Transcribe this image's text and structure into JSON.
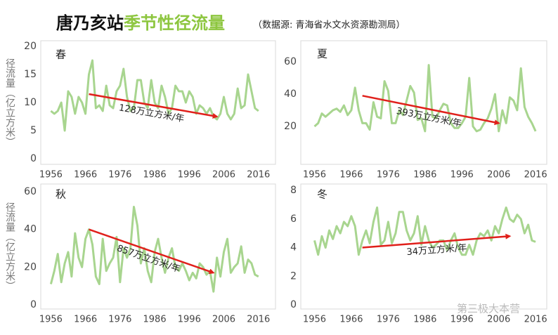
{
  "header": {
    "title": "唐乃亥站",
    "title_highlight": "季节性径流量",
    "source": "（数据源: 青海省水文水资源勘测局）"
  },
  "watermark": "第三极大本营",
  "chart_data": [
    {
      "type": "line",
      "title": "春",
      "ylabel": "径流量（亿立方米）",
      "color": "#a8d58f",
      "x": [
        1956,
        1957,
        1958,
        1959,
        1960,
        1961,
        1962,
        1963,
        1964,
        1965,
        1966,
        1967,
        1968,
        1969,
        1970,
        1971,
        1972,
        1973,
        1974,
        1975,
        1976,
        1977,
        1978,
        1979,
        1980,
        1981,
        1982,
        1983,
        1984,
        1985,
        1986,
        1987,
        1988,
        1989,
        1990,
        1991,
        1992,
        1993,
        1994,
        1995,
        1996,
        1997,
        1998,
        1999,
        2000,
        2001,
        2002,
        2003,
        2004,
        2005,
        2006,
        2007,
        2008,
        2009,
        2010,
        2011,
        2012,
        2013,
        2014,
        2015,
        2016
      ],
      "values": [
        8.5,
        8,
        8.5,
        10,
        5,
        12,
        11,
        8,
        11,
        10,
        8,
        15,
        17.5,
        9,
        9.5,
        8.5,
        13,
        9.5,
        9,
        12,
        13,
        16,
        11,
        8.5,
        9,
        14,
        14,
        10,
        9,
        14,
        10,
        9,
        13,
        11,
        8,
        9,
        13,
        12,
        12,
        10,
        12,
        11,
        8,
        9.5,
        9,
        8,
        9,
        7.5,
        7,
        8,
        11,
        8,
        7,
        8,
        12.5,
        9,
        9.5,
        15,
        12,
        9,
        8.5
      ],
      "xlim": [
        1954.5,
        2019.5
      ],
      "xticks": [
        1956,
        1966,
        1976,
        1986,
        1996,
        2006,
        2016
      ],
      "ylim": [
        0,
        20
      ],
      "yticks": [
        0,
        5,
        10,
        15,
        20
      ],
      "trend": {
        "label": "128万立方米/年",
        "color": "#e0201b",
        "x": [
          1967,
          2004
        ],
        "y": [
          11.5,
          7.5
        ]
      }
    },
    {
      "type": "line",
      "title": "夏",
      "color": "#a8d58f",
      "x": [
        1956,
        1957,
        1958,
        1959,
        1960,
        1961,
        1962,
        1963,
        1964,
        1965,
        1966,
        1967,
        1968,
        1969,
        1970,
        1971,
        1972,
        1973,
        1974,
        1975,
        1976,
        1977,
        1978,
        1979,
        1980,
        1981,
        1982,
        1983,
        1984,
        1985,
        1986,
        1987,
        1988,
        1989,
        1990,
        1991,
        1992,
        1993,
        1994,
        1995,
        1996,
        1997,
        1998,
        1999,
        2000,
        2001,
        2002,
        2003,
        2004,
        2005,
        2006,
        2007,
        2008,
        2009,
        2010,
        2011,
        2012,
        2013,
        2014,
        2015,
        2016
      ],
      "values": [
        20,
        22,
        28,
        26,
        28,
        30,
        31,
        29,
        33,
        27,
        30,
        44,
        30,
        22,
        22,
        18,
        35,
        26,
        25,
        48,
        42,
        22,
        22,
        30,
        27,
        36,
        45,
        41,
        24,
        25,
        17,
        58,
        26,
        25,
        30,
        34,
        33,
        22,
        19,
        19,
        22,
        26,
        50,
        20,
        17,
        18,
        22,
        25,
        31,
        40,
        17,
        30,
        22,
        38,
        36,
        30,
        56,
        32,
        26,
        22,
        17
      ],
      "xlim": [
        1954,
        2017.5
      ],
      "xticks": [
        1956,
        1966,
        1976,
        1986,
        1996,
        2006,
        2016
      ],
      "ylim": [
        0,
        70
      ],
      "yticks": [
        20,
        40,
        60
      ],
      "trend": {
        "label": "393万立方米/年",
        "color": "#e0201b",
        "x": [
          1969,
          2006
        ],
        "y": [
          39,
          22
        ]
      }
    },
    {
      "type": "line",
      "title": "秋",
      "ylabel": "径流量（亿立方米）",
      "color": "#a8d58f",
      "x": [
        1956,
        1957,
        1958,
        1959,
        1960,
        1961,
        1962,
        1963,
        1964,
        1965,
        1966,
        1967,
        1968,
        1969,
        1970,
        1971,
        1972,
        1973,
        1974,
        1975,
        1976,
        1977,
        1978,
        1979,
        1980,
        1981,
        1982,
        1983,
        1984,
        1985,
        1986,
        1987,
        1988,
        1989,
        1990,
        1991,
        1992,
        1993,
        1994,
        1995,
        1996,
        1997,
        1998,
        1999,
        2000,
        2001,
        2002,
        2003,
        2004,
        2005,
        2006,
        2007,
        2008,
        2009,
        2010,
        2011,
        2012,
        2013,
        2014,
        2015,
        2016
      ],
      "values": [
        11,
        18,
        27,
        12,
        22,
        28,
        15,
        38,
        25,
        20,
        35,
        40,
        32,
        15,
        11,
        35,
        18,
        22,
        25,
        36,
        12,
        30,
        25,
        30,
        52,
        42,
        22,
        30,
        18,
        12,
        28,
        35,
        25,
        17,
        25,
        30,
        20,
        18,
        22,
        18,
        13,
        17,
        14,
        22,
        20,
        16,
        18,
        7,
        25,
        15,
        28,
        35,
        17,
        20,
        22,
        31,
        17,
        24,
        22,
        16,
        15
      ],
      "xlim": [
        1954.5,
        2019.5
      ],
      "xticks": [
        1956,
        1966,
        1976,
        1986,
        1996,
        2006,
        2016
      ],
      "ylim": [
        0,
        63
      ],
      "yticks": [
        0,
        20,
        40,
        60
      ],
      "trend": {
        "label": "857万立方米/年",
        "color": "#e0201b",
        "x": [
          1967,
          2003
        ],
        "y": [
          40,
          17
        ]
      }
    },
    {
      "type": "line",
      "title": "冬",
      "color": "#a8d58f",
      "x": [
        1956,
        1957,
        1958,
        1959,
        1960,
        1961,
        1962,
        1963,
        1964,
        1965,
        1966,
        1967,
        1968,
        1969,
        1970,
        1971,
        1972,
        1973,
        1974,
        1975,
        1976,
        1977,
        1978,
        1979,
        1980,
        1981,
        1982,
        1983,
        1984,
        1985,
        1986,
        1987,
        1988,
        1989,
        1990,
        1991,
        1992,
        1993,
        1994,
        1995,
        1996,
        1997,
        1998,
        1999,
        2000,
        2001,
        2002,
        2003,
        2004,
        2005,
        2006,
        2007,
        2008,
        2009,
        2010,
        2011,
        2012,
        2013,
        2014,
        2015,
        2016
      ],
      "values": [
        4.5,
        3.5,
        4.8,
        4,
        5.2,
        4.6,
        5.5,
        5,
        5.8,
        5.5,
        6.2,
        5.5,
        3.5,
        4.5,
        5.2,
        4.3,
        5.8,
        6.8,
        4.2,
        4.5,
        5.8,
        4.3,
        5,
        6.5,
        6.5,
        5.2,
        4.5,
        5,
        6.2,
        4.2,
        5.5,
        4.5,
        4,
        4.2,
        4.5,
        4.5,
        3.8,
        4.5,
        5,
        4,
        3.5,
        3.5,
        4.2,
        3.5,
        4.5,
        5,
        4.8,
        5.2,
        4.5,
        5.5,
        5,
        6,
        6.8,
        6,
        5.8,
        6.3,
        6,
        5,
        5.6,
        4.5,
        4.4
      ],
      "xlim": [
        1954,
        2017.5
      ],
      "xticks": [
        1956,
        1966,
        1976,
        1986,
        1996,
        2006,
        2016
      ],
      "ylim": [
        0,
        8.3
      ],
      "yticks": [
        0,
        2,
        4,
        6,
        8
      ],
      "trend": {
        "label": "34万立方米/年",
        "color": "#e0201b",
        "x": [
          1969,
          2009
        ],
        "y": [
          4.0,
          4.8
        ]
      }
    }
  ]
}
